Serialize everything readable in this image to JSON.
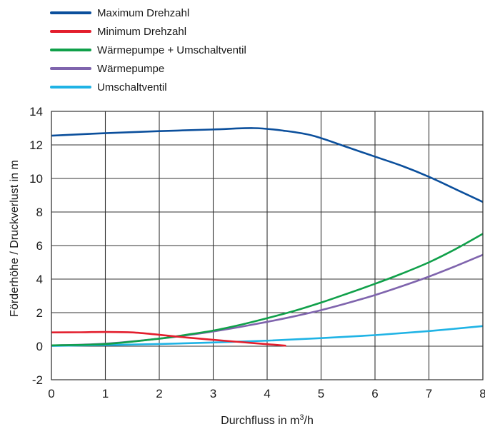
{
  "chart_data": {
    "type": "line",
    "title": "",
    "xlabel": "Durchfluss in m³/h",
    "ylabel": "Förderhöhe / Druckverlust in m",
    "xlim": [
      0,
      8
    ],
    "ylim": [
      -2,
      14
    ],
    "xticks": [
      "0",
      "1",
      "2",
      "3",
      "4",
      "5",
      "6",
      "7",
      "8"
    ],
    "yticks": [
      "-2",
      "0",
      "2",
      "4",
      "6",
      "8",
      "10",
      "12",
      "14"
    ],
    "grid": true,
    "legend_position": "top-left",
    "series": [
      {
        "name": "Maximum Drehzahl",
        "color": "#0b4f9c",
        "x": [
          0,
          1,
          2,
          3,
          3.75,
          4.3,
          4.85,
          5.5,
          6,
          6.5,
          7,
          7.5,
          8
        ],
        "y": [
          12.55,
          12.7,
          12.82,
          12.92,
          13.0,
          12.85,
          12.55,
          11.85,
          11.3,
          10.75,
          10.1,
          9.35,
          8.6
        ]
      },
      {
        "name": "Minimum Drehzahl",
        "color": "#e31e2d",
        "x": [
          0,
          0.5,
          1,
          1.5,
          2,
          2.5,
          3,
          3.5,
          4,
          4.35
        ],
        "y": [
          0.82,
          0.83,
          0.85,
          0.82,
          0.68,
          0.52,
          0.38,
          0.25,
          0.12,
          0.03
        ]
      },
      {
        "name": "Wärmepumpe + Umschaltventil",
        "color": "#10a04a",
        "x": [
          0,
          1,
          2,
          2.5,
          3,
          3.5,
          4,
          4.5,
          5,
          5.5,
          6,
          6.5,
          7,
          7.5,
          8
        ],
        "y": [
          0.05,
          0.13,
          0.45,
          0.68,
          0.93,
          1.27,
          1.67,
          2.1,
          2.6,
          3.15,
          3.72,
          4.33,
          5.0,
          5.8,
          6.7
        ]
      },
      {
        "name": "Wärmepumpe",
        "color": "#7f64ad",
        "x": [
          0,
          1,
          2,
          2.5,
          3,
          3.5,
          4,
          4.5,
          5,
          5.5,
          6,
          6.5,
          7,
          7.5,
          8
        ],
        "y": [
          0.05,
          0.15,
          0.45,
          0.65,
          0.88,
          1.15,
          1.45,
          1.78,
          2.15,
          2.58,
          3.05,
          3.58,
          4.15,
          4.78,
          5.45
        ]
      },
      {
        "name": "Umschaltventil",
        "color": "#1fb3e5",
        "x": [
          0,
          1,
          2,
          3,
          4,
          5,
          6,
          7,
          8
        ],
        "y": [
          0.02,
          0.07,
          0.13,
          0.22,
          0.33,
          0.48,
          0.66,
          0.9,
          1.2
        ]
      }
    ]
  }
}
